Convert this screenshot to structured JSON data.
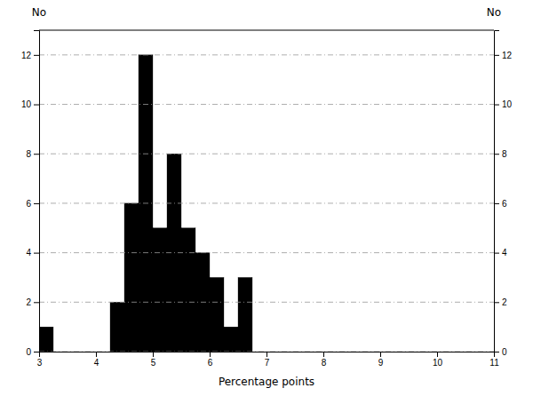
{
  "chart_data": {
    "type": "histogram",
    "xlabel": "Percentage points",
    "ylabel": "No",
    "y2label": "No",
    "bins": [
      3.0,
      3.25,
      4.25,
      4.5,
      4.75,
      5.0,
      5.25,
      5.5,
      5.75,
      6.0,
      6.25,
      6.5,
      6.75
    ],
    "values": [
      1,
      0,
      2,
      6,
      12,
      5,
      8,
      5,
      4,
      3,
      1,
      3
    ],
    "color": "#000000",
    "xlim": [
      3,
      11
    ],
    "xticks": [
      3,
      4,
      5,
      6,
      7,
      8,
      9,
      10,
      11
    ],
    "ylim": [
      0,
      13
    ],
    "yticks": [
      0,
      2,
      4,
      6,
      8,
      10,
      12
    ],
    "y2lim": [
      0,
      13
    ],
    "y2ticks": [
      0,
      2,
      4,
      6,
      8,
      10,
      12
    ],
    "grid": true
  }
}
